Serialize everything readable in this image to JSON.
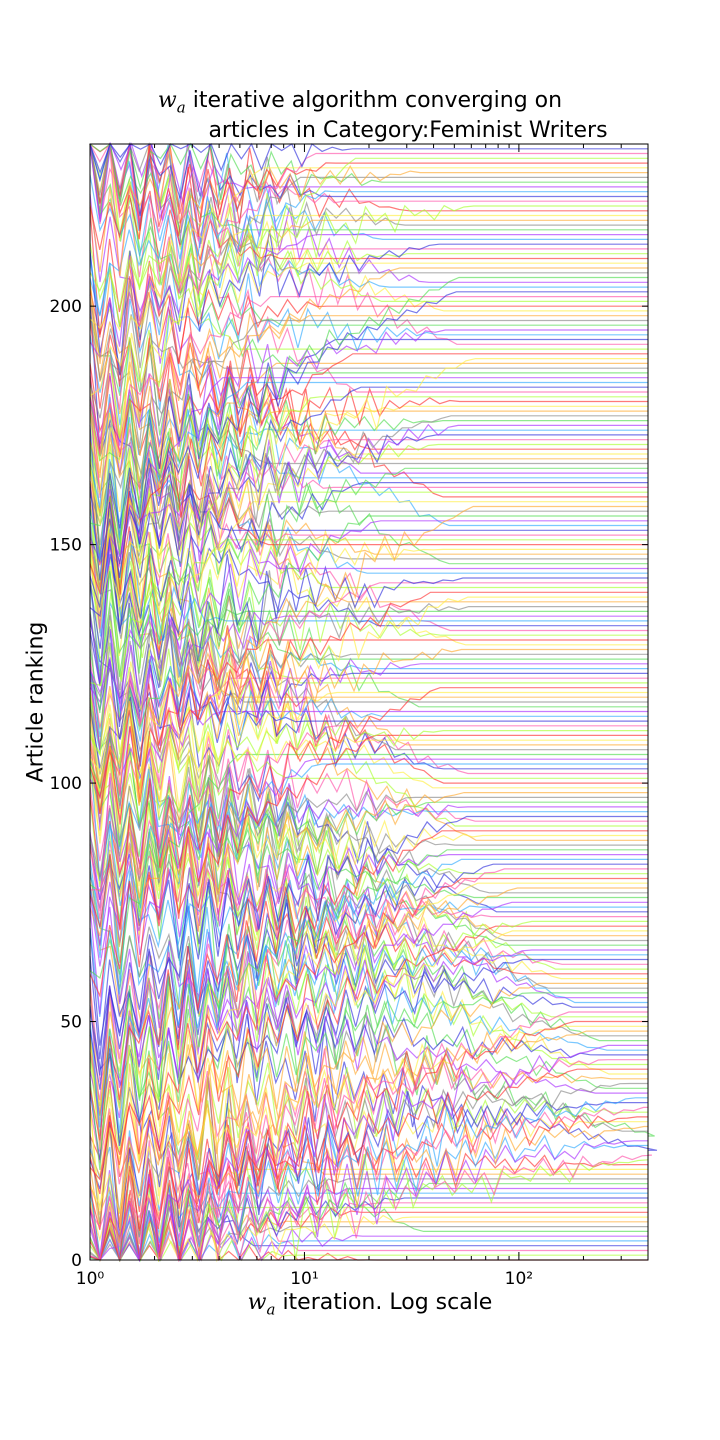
{
  "chart_data": {
    "type": "line",
    "title_symbol": "w",
    "title_symbol_sub": "a",
    "title_line1_rest": "iterative algorithm converging on",
    "title_line2": "articles in Category:Feminist Writers",
    "xlabel_symbol": "w",
    "xlabel_symbol_sub": "a",
    "xlabel_rest": "iteration. Log scale",
    "ylabel": "Article ranking",
    "x_scale": "log",
    "xlim": [
      1,
      400
    ],
    "ylim": [
      0,
      234
    ],
    "x_ticks": [
      1,
      10,
      100
    ],
    "x_tick_labels": [
      "10⁰",
      "10¹",
      "10²"
    ],
    "y_ticks": [
      0,
      50,
      100,
      150,
      200
    ],
    "y_tick_labels": [
      "0",
      "50",
      "100",
      "150",
      "200"
    ],
    "grid": false,
    "legend": "none",
    "n_series": 234,
    "palette": [
      "#ff3333",
      "#3333dd",
      "#55dd55",
      "#ffee44",
      "#ff55aa",
      "#aa33ff",
      "#ffaa33",
      "#aaff33",
      "#33aaff",
      "#888888"
    ],
    "series_summary": "One line per article: initial rankings scattered at iteration 1, oscillating through iterations 10–100, and settling to a flat final rank; the last article converges near iteration 400 at rank ≈21."
  }
}
